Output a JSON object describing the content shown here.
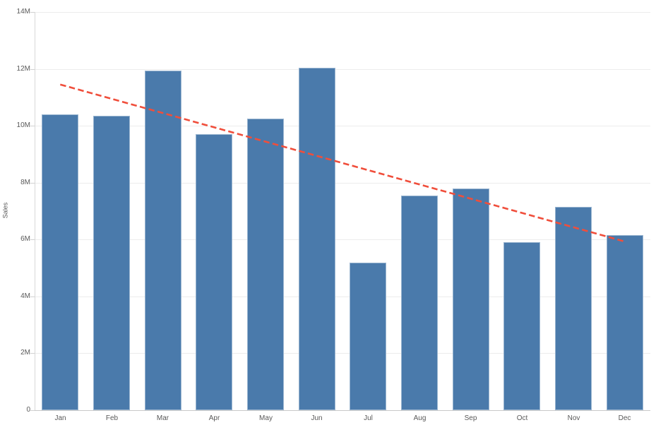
{
  "chart_data": {
    "type": "bar",
    "title": "",
    "xlabel": "",
    "ylabel": "Sales",
    "unit": "M",
    "categories": [
      "Jan",
      "Feb",
      "Mar",
      "Apr",
      "May",
      "Jun",
      "Jul",
      "Aug",
      "Sep",
      "Oct",
      "Nov",
      "Dec"
    ],
    "series": [
      {
        "name": "Sales",
        "values_millions": [
          10.4,
          10.35,
          11.95,
          9.7,
          10.25,
          12.05,
          5.2,
          7.55,
          7.8,
          5.9,
          7.15,
          6.15
        ]
      }
    ],
    "ylim_millions": [
      0,
      14
    ],
    "ytick_step_millions": 2,
    "ytick_labels": [
      "0",
      "2M",
      "4M",
      "6M",
      "8M",
      "10M",
      "12M",
      "14M"
    ],
    "grid": true,
    "legend_position": "none",
    "trend_line": {
      "type": "linear",
      "style": "dashed",
      "start_value_millions": 11.45,
      "end_value_millions": 5.93
    },
    "colors": {
      "bar": "#4a7aab",
      "trend": "#f04e3b",
      "gridline": "#ececec",
      "axis_line": "#d8d8d8",
      "baseline": "#c9c9c9",
      "text": "#595959"
    }
  }
}
